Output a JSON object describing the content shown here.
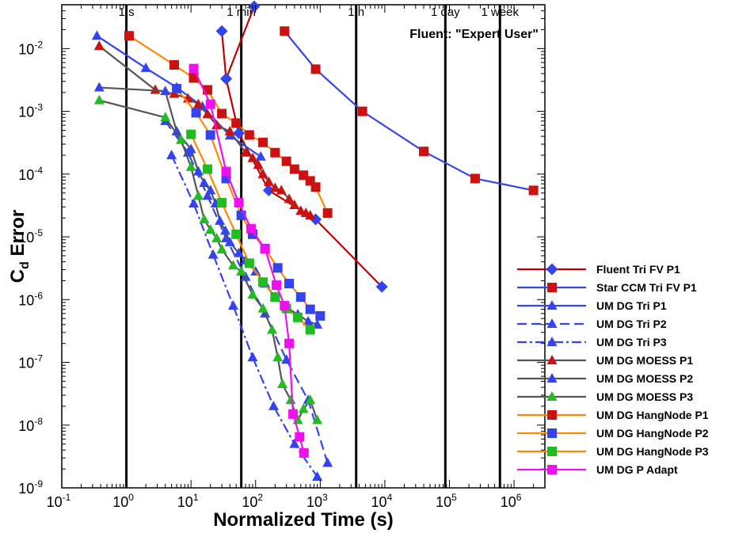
{
  "chart_data": {
    "type": "line",
    "xlabel": "Normalized Time (s)",
    "ylabel_main": "C",
    "ylabel_sub": "d",
    "ylabel_rest": " Error",
    "x_scale": "log",
    "y_scale": "log",
    "xlim": [
      0.1,
      3000000
    ],
    "ylim": [
      1e-09,
      0.05
    ],
    "x_ticks": [
      {
        "value": 0.1,
        "base": "10",
        "exp": "-1"
      },
      {
        "value": 1,
        "base": "10",
        "exp": "0"
      },
      {
        "value": 10,
        "base": "10",
        "exp": "1"
      },
      {
        "value": 100,
        "base": "10",
        "exp": "2"
      },
      {
        "value": 1000,
        "base": "10",
        "exp": "3"
      },
      {
        "value": 10000,
        "base": "10",
        "exp": "4"
      },
      {
        "value": 100000,
        "base": "10",
        "exp": "5"
      },
      {
        "value": 1000000,
        "base": "10",
        "exp": "6"
      }
    ],
    "y_ticks": [
      {
        "value": 0.01,
        "base": "10",
        "exp": "-2"
      },
      {
        "value": 0.001,
        "base": "10",
        "exp": "-3"
      },
      {
        "value": 0.0001,
        "base": "10",
        "exp": "-4"
      },
      {
        "value": 1e-05,
        "base": "10",
        "exp": "-5"
      },
      {
        "value": 1e-06,
        "base": "10",
        "exp": "-6"
      },
      {
        "value": 1e-07,
        "base": "10",
        "exp": "-7"
      },
      {
        "value": 1e-08,
        "base": "10",
        "exp": "-8"
      },
      {
        "value": 1e-09,
        "base": "10",
        "exp": "-9"
      }
    ],
    "time_markers": [
      {
        "label": "1 s",
        "value": 1
      },
      {
        "label": "1 min",
        "value": 60
      },
      {
        "label": "1 h",
        "value": 3600
      },
      {
        "label": "1 day",
        "value": 86400
      },
      {
        "label": "1 week",
        "value": 604800
      }
    ],
    "annotation": "Fluent: \"Expert User\"",
    "legend_position": "right",
    "series": [
      {
        "name": "Fluent Tri FV P1",
        "color": "#c00000",
        "marker": "diamond",
        "marker_color": "#3344ee",
        "dash": "",
        "x": [
          30,
          35,
          95
        ],
        "y": [
          0.019,
          0.0033,
          0.047
        ],
        "main": false
      },
      {
        "name": "",
        "color": "#c00000",
        "marker": "diamond",
        "marker_color": "#3344ee",
        "dash": "",
        "x": [
          35,
          55,
          160,
          850,
          9000
        ],
        "y": [
          0.0033,
          0.00045,
          5.5e-05,
          1.9e-05,
          1.6e-06
        ],
        "main": false
      },
      {
        "name": "Fluent Tri FV P1",
        "color": "#c00000",
        "marker": "diamond",
        "marker_color": "#3344ee",
        "dash": "",
        "x": [],
        "y": [],
        "main": true
      },
      {
        "name": "Star CCM Tri FV P1",
        "color": "#3344ee",
        "marker": "square",
        "marker_color": "#cc1111",
        "dash": "",
        "x": [
          280,
          850,
          4500,
          40000,
          250000,
          2000000
        ],
        "y": [
          0.019,
          0.0047,
          0.001,
          0.00023,
          8.5e-05,
          5.5e-05
        ],
        "main": true
      },
      {
        "name": "UM DG Tri P1",
        "color": "#3344ee",
        "marker": "triangle",
        "marker_color": "#3344ee",
        "dash": "",
        "x": [
          0.35,
          2,
          6,
          15,
          40,
          120
        ],
        "y": [
          0.016,
          0.0049,
          0.0024,
          0.0012,
          0.00041,
          0.00019
        ],
        "main": true
      },
      {
        "name": "UM DG Tri P2",
        "color": "#3344ee",
        "marker": "triangle",
        "marker_color": "#3344ee",
        "dash": "12,6",
        "x": [
          4,
          9,
          18,
          35,
          70,
          140,
          300,
          650,
          1300
        ],
        "y": [
          0.0007,
          0.00022,
          4.5e-05,
          9.5e-06,
          2.3e-06,
          6e-07,
          1.1e-07,
          2.5e-08,
          2.5e-09
        ],
        "main": true
      },
      {
        "name": "UM DG Tri P3",
        "color": "#3344ee",
        "marker": "triangle",
        "marker_color": "#3344ee",
        "dash": "12,4,3,4",
        "x": [
          5,
          11,
          22,
          45,
          90,
          190,
          400,
          900
        ],
        "y": [
          0.0002,
          3.4e-05,
          5.2e-06,
          8e-07,
          1.2e-07,
          2e-08,
          5e-09,
          1.5e-09
        ],
        "main": true
      },
      {
        "name": "UM DG MOESS P1",
        "color": "#555555",
        "marker": "triangle",
        "marker_color": "#cc1111",
        "dash": "",
        "x": [
          0.38,
          2.8,
          5.5,
          9,
          13,
          18,
          25,
          40,
          70,
          90,
          110,
          130,
          160,
          200,
          250,
          330,
          400,
          500,
          600,
          700
        ],
        "y": [
          0.011,
          0.0022,
          0.0019,
          0.0016,
          0.0013,
          0.0009,
          0.0006,
          0.00048,
          0.00022,
          0.00018,
          0.00014,
          0.0001,
          7.5e-05,
          6e-05,
          5.5e-05,
          4e-05,
          3.2e-05,
          2.6e-05,
          2.4e-05,
          2.2e-05
        ],
        "main": true
      },
      {
        "name": "UM DG MOESS P2",
        "color": "#555555",
        "marker": "triangle",
        "marker_color": "#3344ee",
        "dash": "",
        "x": [
          0.38,
          4,
          6,
          10,
          13,
          16,
          20,
          24,
          28,
          34,
          40,
          55,
          70,
          100,
          140,
          200,
          300,
          450,
          650,
          900
        ],
        "y": [
          0.0024,
          0.0021,
          0.00048,
          0.00025,
          0.00011,
          7.2e-05,
          5.5e-05,
          3.4e-05,
          1.8e-05,
          1.25e-05,
          8.2e-06,
          5.5e-06,
          4.2e-06,
          2.8e-06,
          1.8e-06,
          1.1e-06,
          7.5e-07,
          5.8e-07,
          4.5e-07,
          4e-07
        ],
        "main": true
      },
      {
        "name": "UM DG MOESS P3",
        "color": "#555555",
        "marker": "triangle",
        "marker_color": "#22bb22",
        "dash": "",
        "x": [
          0.38,
          4,
          7,
          10,
          13,
          16,
          20,
          25,
          30,
          45,
          60,
          90,
          130,
          180,
          220,
          260,
          350,
          450,
          550,
          700,
          900
        ],
        "y": [
          0.0015,
          0.0008,
          0.00035,
          0.00013,
          4.5e-05,
          1.9e-05,
          1.3e-05,
          9.5e-06,
          6.3e-06,
          3.5e-06,
          2.8e-06,
          1.2e-06,
          7.2e-07,
          3.3e-07,
          1.2e-07,
          4.5e-08,
          2.5e-08,
          1.2e-08,
          1.8e-08,
          2.5e-08,
          1.2e-08
        ],
        "main": true
      },
      {
        "name": "UM DG HangNode P1",
        "color": "#ff8800",
        "marker": "square",
        "marker_color": "#cc1111",
        "dash": "",
        "x": [
          1.1,
          5.5,
          11,
          18,
          30,
          50,
          80,
          130,
          200,
          300,
          400,
          550,
          700,
          850,
          1300
        ],
        "y": [
          0.016,
          0.0055,
          0.0034,
          0.0022,
          0.00092,
          0.00065,
          0.00042,
          0.00032,
          0.00022,
          0.00016,
          0.00012,
          9.6e-05,
          7.8e-05,
          6.2e-05,
          2.4e-05
        ],
        "main": true
      },
      {
        "name": "UM DG HangNode P2",
        "color": "#ff8800",
        "marker": "square",
        "marker_color": "#3344ee",
        "dash": "",
        "x": [
          6,
          12,
          20,
          35,
          60,
          90,
          140,
          220,
          330,
          500,
          700,
          1000
        ],
        "y": [
          0.0023,
          0.00095,
          0.00042,
          8.5e-05,
          2.2e-05,
          1.1e-05,
          6.5e-06,
          3.2e-06,
          1.8e-06,
          1.1e-06,
          7e-07,
          5.5e-07
        ],
        "main": true
      },
      {
        "name": "UM DG HangNode P3",
        "color": "#ff8800",
        "marker": "square",
        "marker_color": "#22bb22",
        "dash": "",
        "x": [
          10,
          18,
          30,
          50,
          80,
          130,
          200,
          300,
          450,
          700
        ],
        "y": [
          0.00043,
          0.00012,
          3.5e-05,
          1.1e-05,
          3.8e-06,
          1.9e-06,
          1.1e-06,
          7.2e-07,
          5.2e-07,
          3.3e-07
        ],
        "main": true
      },
      {
        "name": "UM DG P Adapt",
        "color": "#ee11ee",
        "marker": "square",
        "marker_color": "#ee11ee",
        "dash": "",
        "x": [
          11,
          20,
          35,
          55,
          85,
          140,
          210,
          280,
          330,
          380,
          480,
          560
        ],
        "y": [
          0.0048,
          0.0013,
          0.00011,
          3.5e-05,
          1.35e-05,
          6.4e-06,
          1.7e-06,
          8e-07,
          2e-07,
          1.5e-08,
          6.5e-09,
          3.6e-09
        ],
        "main": true
      }
    ]
  }
}
